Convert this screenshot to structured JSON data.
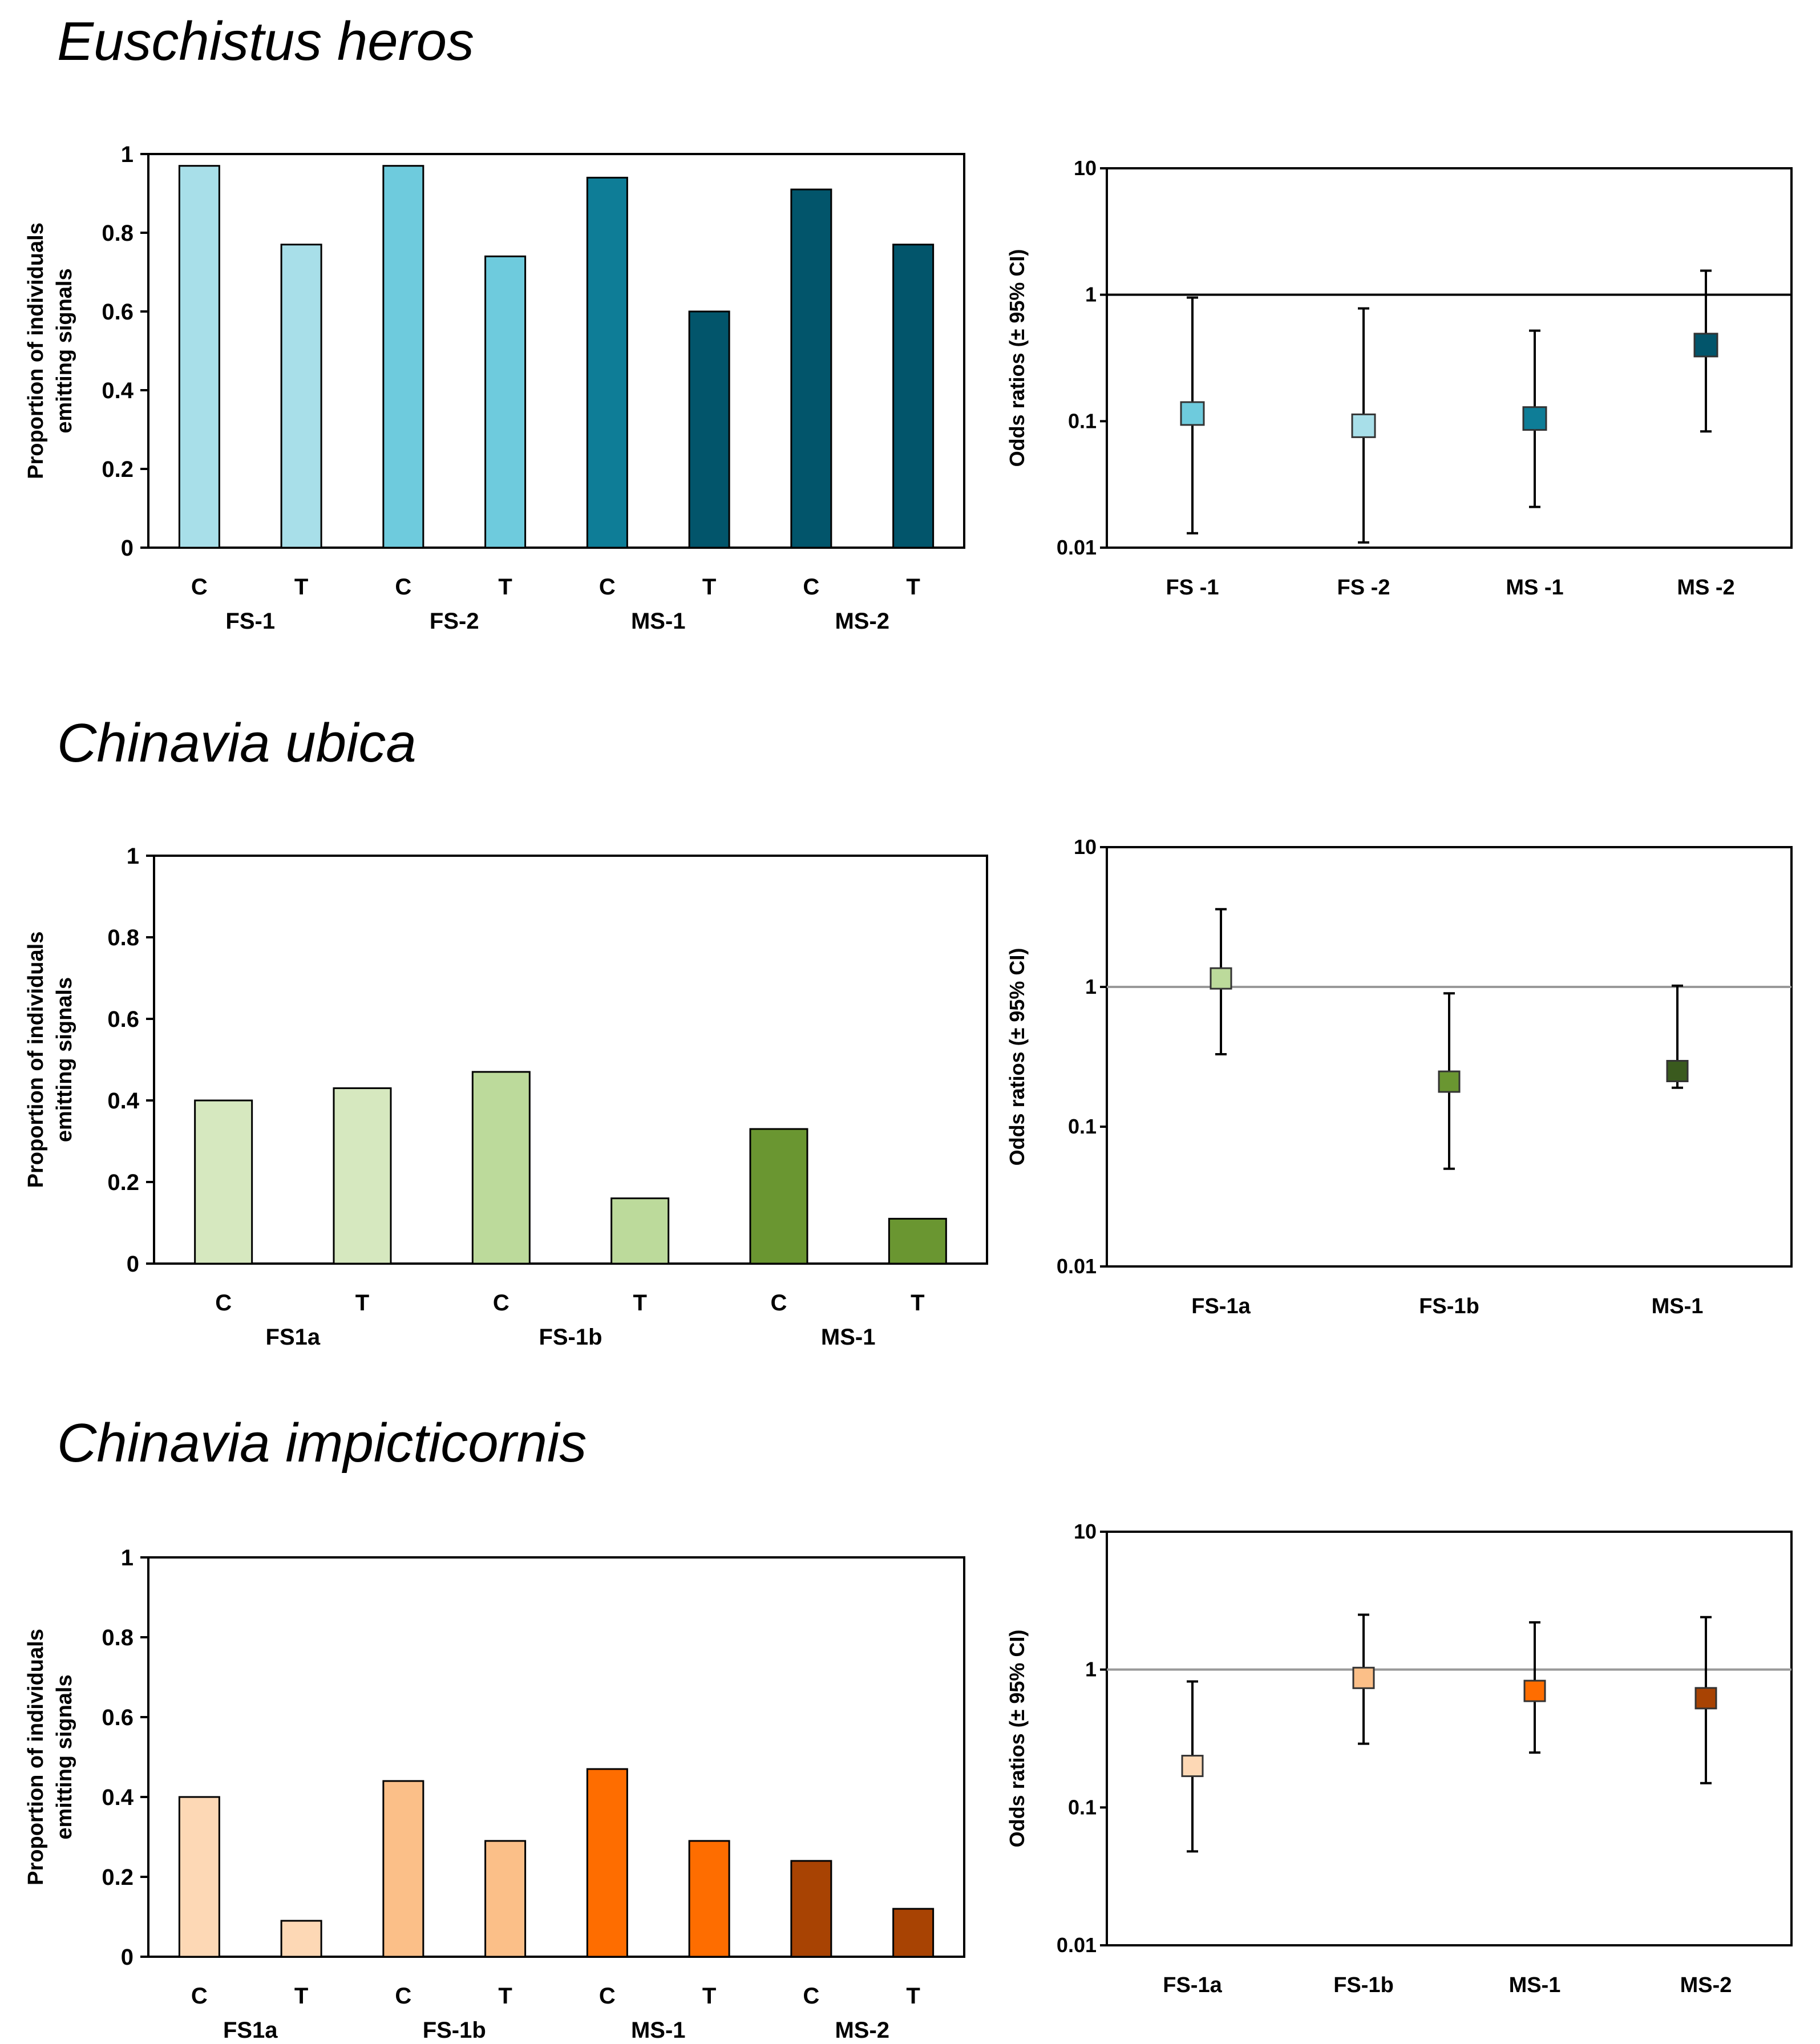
{
  "chart_data": [
    {
      "type": "bar",
      "panel_title": "Euschistus heros",
      "ylabel_lines": [
        "Proportion of individuals",
        "emitting signals"
      ],
      "ylim": [
        0,
        1
      ],
      "yticks": [
        "0",
        "0.2",
        "0.4",
        "0.6",
        "0.8",
        "1"
      ],
      "groups": [
        "FS-1",
        "FS-2",
        "MS-1",
        "MS-2"
      ],
      "bar_labels": [
        "C",
        "T",
        "C",
        "T",
        "C",
        "T",
        "C",
        "T"
      ],
      "values": [
        0.97,
        0.77,
        0.97,
        0.74,
        0.94,
        0.6,
        0.91,
        0.77
      ],
      "colors": [
        "#a8dfe9",
        "#a8dfe9",
        "#6ecbdd",
        "#6ecbdd",
        "#0e7d97",
        "#02556b",
        "#02556b",
        "#02556b"
      ]
    },
    {
      "type": "errorbar",
      "panel_title": "Euschistus heros",
      "ylabel": "Odds ratios (± 95% CI)",
      "scale": "log",
      "ylim": [
        0.01,
        10
      ],
      "yticks": [
        "10",
        "1",
        "0.1",
        "0.01"
      ],
      "reference_line": 1,
      "categories": [
        "FS -1",
        "FS -2",
        "MS -1",
        "MS -2"
      ],
      "values": [
        0.115,
        0.092,
        0.105,
        0.4
      ],
      "ci_low": [
        0.013,
        0.011,
        0.021,
        0.083
      ],
      "ci_high": [
        0.95,
        0.78,
        0.52,
        1.55
      ],
      "colors": [
        "#6ecbdd",
        "#a8dfe9",
        "#0e7d97",
        "#02556b"
      ]
    },
    {
      "type": "bar",
      "panel_title": "Chinavia ubica",
      "ylabel_lines": [
        "Proportion of individuals",
        "emitting signals"
      ],
      "ylim": [
        0,
        1
      ],
      "yticks": [
        "0",
        "0.2",
        "0.4",
        "0.6",
        "0.8",
        "1"
      ],
      "groups": [
        "FS1a",
        "FS-1b",
        "MS-1"
      ],
      "bar_labels": [
        "C",
        "T",
        "C",
        "T",
        "C",
        "T"
      ],
      "values": [
        0.4,
        0.43,
        0.47,
        0.16,
        0.33,
        0.11
      ],
      "colors": [
        "#d6e8bf",
        "#d6e8bf",
        "#bcda9b",
        "#bcda9b",
        "#6a9631",
        "#6a9631"
      ]
    },
    {
      "type": "errorbar",
      "panel_title": "Chinavia ubica",
      "ylabel": "Odds ratios (± 95% CI)",
      "scale": "log",
      "ylim": [
        0.01,
        10
      ],
      "yticks": [
        "10",
        "1",
        "0.1",
        "0.01"
      ],
      "reference_line": 1,
      "categories": [
        "FS-1a",
        "FS-1b",
        "MS-1"
      ],
      "values": [
        1.15,
        0.21,
        0.25
      ],
      "ci_low": [
        0.33,
        0.05,
        0.19
      ],
      "ci_high": [
        3.6,
        0.9,
        1.02
      ],
      "colors": [
        "#bcda9b",
        "#6a9631",
        "#3a5a1e"
      ]
    },
    {
      "type": "bar",
      "panel_title": "Chinavia impicticornis",
      "ylabel_lines": [
        "Proportion of individuals",
        "emitting signals"
      ],
      "ylim": [
        0,
        1
      ],
      "yticks": [
        "0",
        "0.2",
        "0.4",
        "0.6",
        "0.8",
        "1"
      ],
      "groups": [
        "FS1a",
        "FS-1b",
        "MS-1",
        "MS-2"
      ],
      "bar_labels": [
        "C",
        "T",
        "C",
        "T",
        "C",
        "T",
        "C",
        "T"
      ],
      "values": [
        0.4,
        0.09,
        0.44,
        0.29,
        0.47,
        0.29,
        0.24,
        0.12
      ],
      "colors": [
        "#fdd8b5",
        "#fdd8b5",
        "#fbbf88",
        "#fbbf88",
        "#fe6d00",
        "#fe6d00",
        "#a84303",
        "#a84303"
      ]
    },
    {
      "type": "errorbar",
      "panel_title": "Chinavia impicticornis",
      "ylabel": "Odds ratios (± 95% CI)",
      "scale": "log",
      "ylim": [
        0.01,
        10
      ],
      "yticks": [
        "10",
        "1",
        "0.1",
        "0.01"
      ],
      "reference_line": 1,
      "categories": [
        "FS-1a",
        "FS-1b",
        "MS-1",
        "MS-2"
      ],
      "values": [
        0.2,
        0.87,
        0.7,
        0.62
      ],
      "ci_low": [
        0.048,
        0.29,
        0.25,
        0.15
      ],
      "ci_high": [
        0.82,
        2.5,
        2.2,
        2.4
      ],
      "colors": [
        "#fdd8b5",
        "#fbbf88",
        "#fe6d00",
        "#a84303"
      ]
    }
  ]
}
